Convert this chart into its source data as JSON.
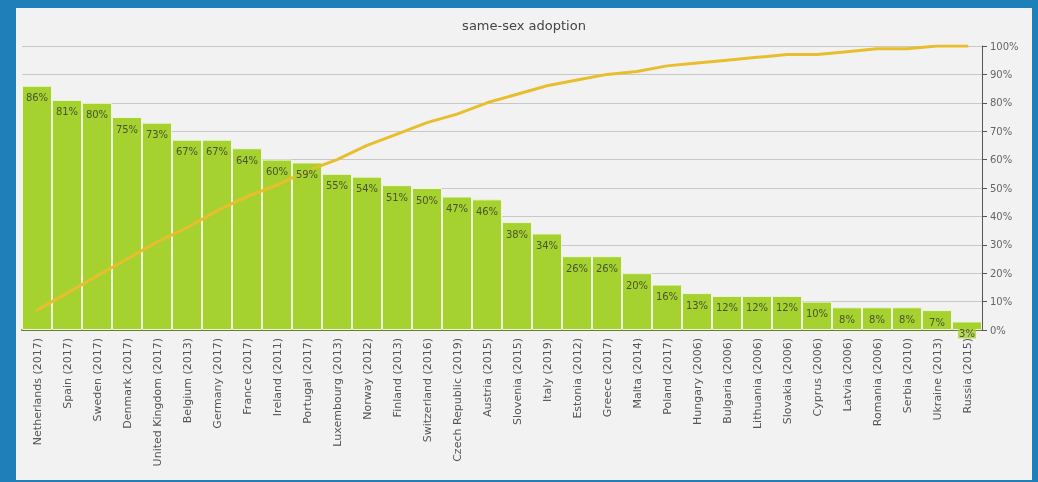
{
  "chart_data": {
    "type": "bar",
    "title": "same-sex adoption",
    "categories": [
      "Netherlands (2017)",
      "Spain (2017)",
      "Sweden (2017)",
      "Denmark (2017)",
      "United Kingdom (2017)",
      "Belgium (2013)",
      "Germany (2017)",
      "France (2017)",
      "Ireland (2011)",
      "Portugal (2017)",
      "Luxembourg (2013)",
      "Norway (2012)",
      "Finland (2013)",
      "Switzerland (2016)",
      "Czech Republic (2019)",
      "Austria (2015)",
      "Slovenia (2015)",
      "Italy (2019)",
      "Estonia (2012)",
      "Greece (2017)",
      "Malta (2014)",
      "Poland (2017)",
      "Hungary (2006)",
      "Bulgaria (2006)",
      "Lithuania (2006)",
      "Slovakia (2006)",
      "Cyprus (2006)",
      "Latvia (2006)",
      "Romania (2006)",
      "Serbia (2010)",
      "Ukraine (2013)",
      "Russia (2015)"
    ],
    "series": [
      {
        "color": "#a5d22f",
        "values": [
          86,
          81,
          80,
          75,
          73,
          67,
          67,
          64,
          60,
          59,
          55,
          54,
          51,
          50,
          47,
          46,
          38,
          34,
          26,
          26,
          20,
          16,
          13,
          12,
          12,
          12,
          10,
          8,
          8,
          8,
          7,
          3
        ],
        "value_labels": [
          "86%",
          "81%",
          "80%",
          "75%",
          "73%",
          "67%",
          "67%",
          "64%",
          "60%",
          "59%",
          "55%",
          "54%",
          "51%",
          "50%",
          "47%",
          "46%",
          "38%",
          "34%",
          "26%",
          "26%",
          "20%",
          "16%",
          "13%",
          "12%",
          "12%",
          "12%",
          "10%",
          "8%",
          "8%",
          "8%",
          "7%",
          "3%"
        ]
      },
      {
        "type": "line",
        "color": "#e8be2c",
        "values": [
          7,
          13,
          19,
          25,
          31,
          36,
          42,
          47,
          51,
          56,
          60,
          65,
          69,
          73,
          76,
          80,
          83,
          86,
          88,
          90,
          91,
          93,
          94,
          95,
          96,
          97,
          97,
          98,
          99,
          99,
          100,
          100
        ]
      }
    ],
    "ylim": [
      0,
      100
    ],
    "yticks": [
      {
        "value": 0,
        "label": "0%"
      },
      {
        "value": 10,
        "label": "10%"
      },
      {
        "value": 20,
        "label": "20%"
      },
      {
        "value": 30,
        "label": "30%"
      },
      {
        "value": 40,
        "label": "40%"
      },
      {
        "value": 50,
        "label": "50%"
      },
      {
        "value": 60,
        "label": "60%"
      },
      {
        "value": 70,
        "label": "70%"
      },
      {
        "value": 80,
        "label": "80%"
      },
      {
        "value": 90,
        "label": "90%"
      },
      {
        "value": 100,
        "label": "100%"
      }
    ],
    "grid": "y",
    "marker": "none"
  }
}
